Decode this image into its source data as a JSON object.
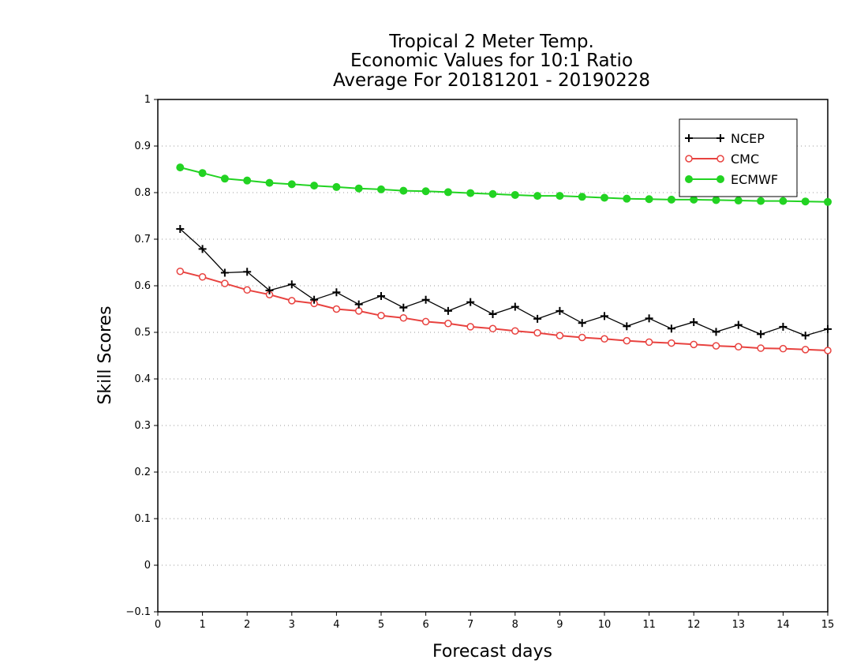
{
  "chart_data": {
    "type": "line",
    "title": [
      "Tropical 2 Meter Temp.",
      "Economic Values for 10:1 Ratio",
      "Average For 20181201 - 20190228"
    ],
    "xlabel": "Forecast days",
    "ylabel": "Skill Scores",
    "xlim": [
      0,
      15
    ],
    "ylim": [
      -0.1,
      1
    ],
    "xticks": [
      "0",
      "1",
      "2",
      "3",
      "4",
      "5",
      "6",
      "7",
      "8",
      "9",
      "10",
      "11",
      "12",
      "13",
      "14",
      "15"
    ],
    "yticks": [
      "−0.1",
      "0",
      "0.1",
      "0.2",
      "0.3",
      "0.4",
      "0.5",
      "0.6",
      "0.7",
      "0.8",
      "0.9",
      "1"
    ],
    "ytick_values": [
      -0.1,
      0,
      0.1,
      0.2,
      0.3,
      0.4,
      0.5,
      0.6,
      0.7,
      0.8,
      0.9,
      1.0
    ],
    "grid": "horizontal-dotted",
    "legend_position": "top-right",
    "x": [
      0.5,
      1,
      1.5,
      2,
      2.5,
      3,
      3.5,
      4,
      4.5,
      5,
      5.5,
      6,
      6.5,
      7,
      7.5,
      8,
      8.5,
      9,
      9.5,
      10,
      10.5,
      11,
      11.5,
      12,
      12.5,
      13,
      13.5,
      14,
      14.5,
      15
    ],
    "series": [
      {
        "name": "NCEP",
        "color": "#000000",
        "marker": "plus",
        "values": [
          0.722,
          0.679,
          0.628,
          0.63,
          0.59,
          0.603,
          0.57,
          0.586,
          0.56,
          0.578,
          0.553,
          0.57,
          0.546,
          0.565,
          0.539,
          0.555,
          0.529,
          0.546,
          0.52,
          0.535,
          0.513,
          0.53,
          0.508,
          0.522,
          0.501,
          0.516,
          0.496,
          0.512,
          0.493,
          0.507
        ]
      },
      {
        "name": "CMC",
        "color": "#e8423f",
        "marker": "open-circle",
        "values": [
          0.631,
          0.619,
          0.605,
          0.591,
          0.581,
          0.568,
          0.562,
          0.55,
          0.546,
          0.536,
          0.531,
          0.523,
          0.519,
          0.512,
          0.508,
          0.503,
          0.499,
          0.493,
          0.489,
          0.486,
          0.482,
          0.479,
          0.477,
          0.474,
          0.471,
          0.469,
          0.466,
          0.465,
          0.463,
          0.461
        ]
      },
      {
        "name": "ECMWF",
        "color": "#22d322",
        "marker": "filled-circle",
        "values": [
          0.854,
          0.842,
          0.83,
          0.826,
          0.821,
          0.818,
          0.815,
          0.812,
          0.809,
          0.807,
          0.804,
          0.803,
          0.801,
          0.799,
          0.797,
          0.795,
          0.793,
          0.793,
          0.791,
          0.789,
          0.787,
          0.786,
          0.785,
          0.785,
          0.784,
          0.783,
          0.782,
          0.782,
          0.781,
          0.78
        ]
      }
    ]
  }
}
